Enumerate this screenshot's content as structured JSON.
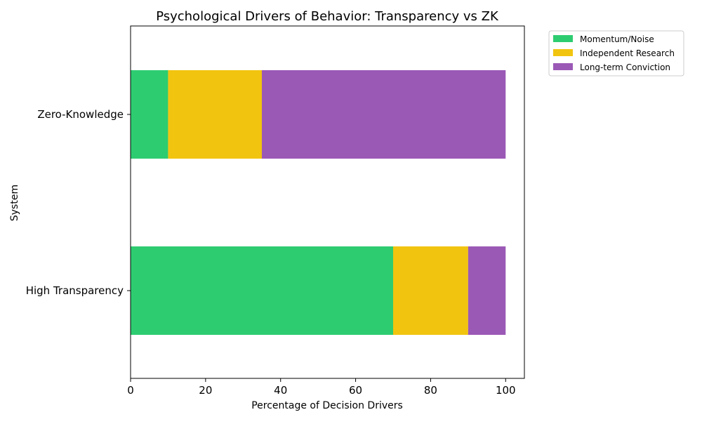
{
  "chart_data": {
    "type": "bar",
    "orientation": "horizontal",
    "stacked": true,
    "title": "Psychological Drivers of Behavior: Transparency vs ZK",
    "xlabel": "Percentage of Decision Drivers",
    "ylabel": "System",
    "categories": [
      "High Transparency",
      "Zero-Knowledge"
    ],
    "series": [
      {
        "name": "Momentum/Noise",
        "values": [
          70,
          10
        ],
        "color": "#2ecc71"
      },
      {
        "name": "Independent Research",
        "values": [
          20,
          25
        ],
        "color": "#f1c40f"
      },
      {
        "name": "Long-term Conviction",
        "values": [
          10,
          65
        ],
        "color": "#9b59b6"
      }
    ],
    "xlim": [
      0,
      105
    ],
    "xticks": [
      0,
      20,
      40,
      60,
      80,
      100
    ],
    "grid": false,
    "legend_position": "outside-top-right"
  }
}
